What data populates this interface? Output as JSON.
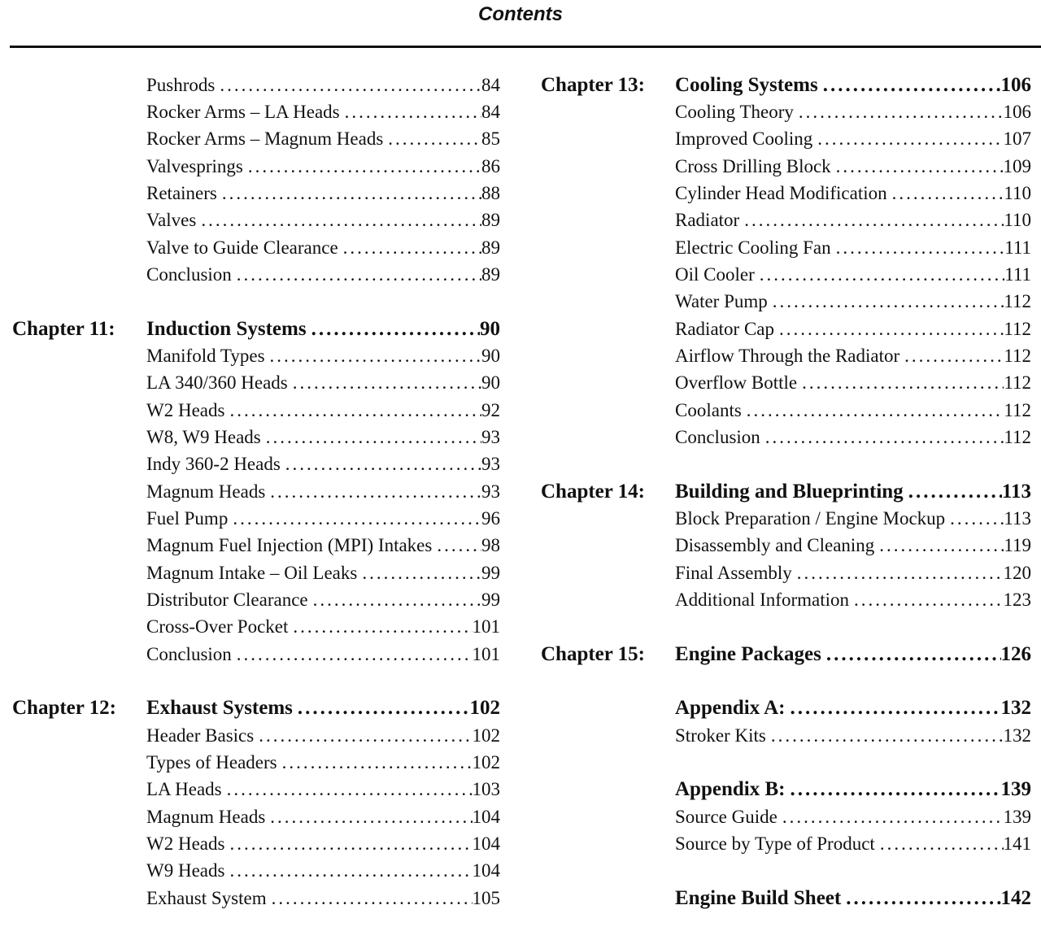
{
  "page_title": "Contents",
  "columns": [
    {
      "sections": [
        {
          "chapter": "",
          "title": "",
          "page": "",
          "entries": [
            {
              "label": "Pushrods",
              "page": "84"
            },
            {
              "label": "Rocker Arms – LA Heads",
              "page": "84"
            },
            {
              "label": "Rocker Arms – Magnum Heads",
              "page": "85"
            },
            {
              "label": "Valvesprings",
              "page": "86"
            },
            {
              "label": "Retainers",
              "page": "88"
            },
            {
              "label": "Valves",
              "page": "89"
            },
            {
              "label": "Valve to Guide Clearance",
              "page": "89"
            },
            {
              "label": "Conclusion",
              "page": "89"
            }
          ]
        },
        {
          "chapter": "Chapter 11:",
          "title": "Induction Systems",
          "page": "90",
          "entries": [
            {
              "label": "Manifold Types",
              "page": "90"
            },
            {
              "label": "LA 340/360 Heads",
              "page": "90"
            },
            {
              "label": "W2 Heads",
              "page": "92"
            },
            {
              "label": "W8, W9 Heads",
              "page": "93"
            },
            {
              "label": "Indy 360-2 Heads",
              "page": "93"
            },
            {
              "label": "Magnum Heads",
              "page": "93"
            },
            {
              "label": "Fuel Pump",
              "page": "96"
            },
            {
              "label": "Magnum Fuel Injection (MPI) Intakes",
              "page": "98"
            },
            {
              "label": "Magnum Intake – Oil Leaks",
              "page": "99"
            },
            {
              "label": "Distributor Clearance",
              "page": "99"
            },
            {
              "label": "Cross-Over Pocket",
              "page": "101"
            },
            {
              "label": "Conclusion",
              "page": "101"
            }
          ]
        },
        {
          "chapter": "Chapter 12:",
          "title": "Exhaust Systems",
          "page": "102",
          "entries": [
            {
              "label": "Header Basics",
              "page": "102"
            },
            {
              "label": "Types of Headers",
              "page": "102"
            },
            {
              "label": "LA Heads",
              "page": "103"
            },
            {
              "label": "Magnum Heads",
              "page": "104"
            },
            {
              "label": "W2 Heads",
              "page": "104"
            },
            {
              "label": "W9 Heads",
              "page": "104"
            },
            {
              "label": "Exhaust System",
              "page": "105"
            }
          ]
        }
      ]
    },
    {
      "sections": [
        {
          "chapter": "Chapter 13:",
          "title": "Cooling Systems",
          "page": "106",
          "entries": [
            {
              "label": "Cooling Theory",
              "page": "106"
            },
            {
              "label": "Improved Cooling",
              "page": "107"
            },
            {
              "label": "Cross Drilling Block",
              "page": "109"
            },
            {
              "label": "Cylinder Head Modification",
              "page": "110"
            },
            {
              "label": "Radiator",
              "page": "110"
            },
            {
              "label": "Electric Cooling Fan",
              "page": "111"
            },
            {
              "label": "Oil Cooler",
              "page": "111"
            },
            {
              "label": "Water Pump",
              "page": "112"
            },
            {
              "label": "Radiator Cap",
              "page": "112"
            },
            {
              "label": "Airflow Through the Radiator",
              "page": "112"
            },
            {
              "label": "Overflow Bottle",
              "page": "112"
            },
            {
              "label": "Coolants",
              "page": "112"
            },
            {
              "label": "Conclusion",
              "page": "112"
            }
          ]
        },
        {
          "chapter": "Chapter 14:",
          "title": "Building and Blueprinting",
          "page": "113",
          "entries": [
            {
              "label": "Block Preparation / Engine Mockup",
              "page": "113"
            },
            {
              "label": "Disassembly and Cleaning",
              "page": "119"
            },
            {
              "label": "Final Assembly",
              "page": "120"
            },
            {
              "label": "Additional Information",
              "page": "123"
            }
          ]
        },
        {
          "chapter": "Chapter 15:",
          "title": "Engine Packages",
          "page": "126",
          "entries": []
        },
        {
          "chapter": "",
          "title": "Appendix A:",
          "page": "132",
          "entries": [
            {
              "label": "Stroker Kits",
              "page": "132"
            }
          ]
        },
        {
          "chapter": "",
          "title": "Appendix B:",
          "page": "139",
          "entries": [
            {
              "label": "Source Guide",
              "page": "139"
            },
            {
              "label": "Source by Type of Product",
              "page": "141"
            }
          ]
        },
        {
          "chapter": "",
          "title": "Engine Build Sheet",
          "page": "142",
          "entries": []
        }
      ]
    }
  ]
}
